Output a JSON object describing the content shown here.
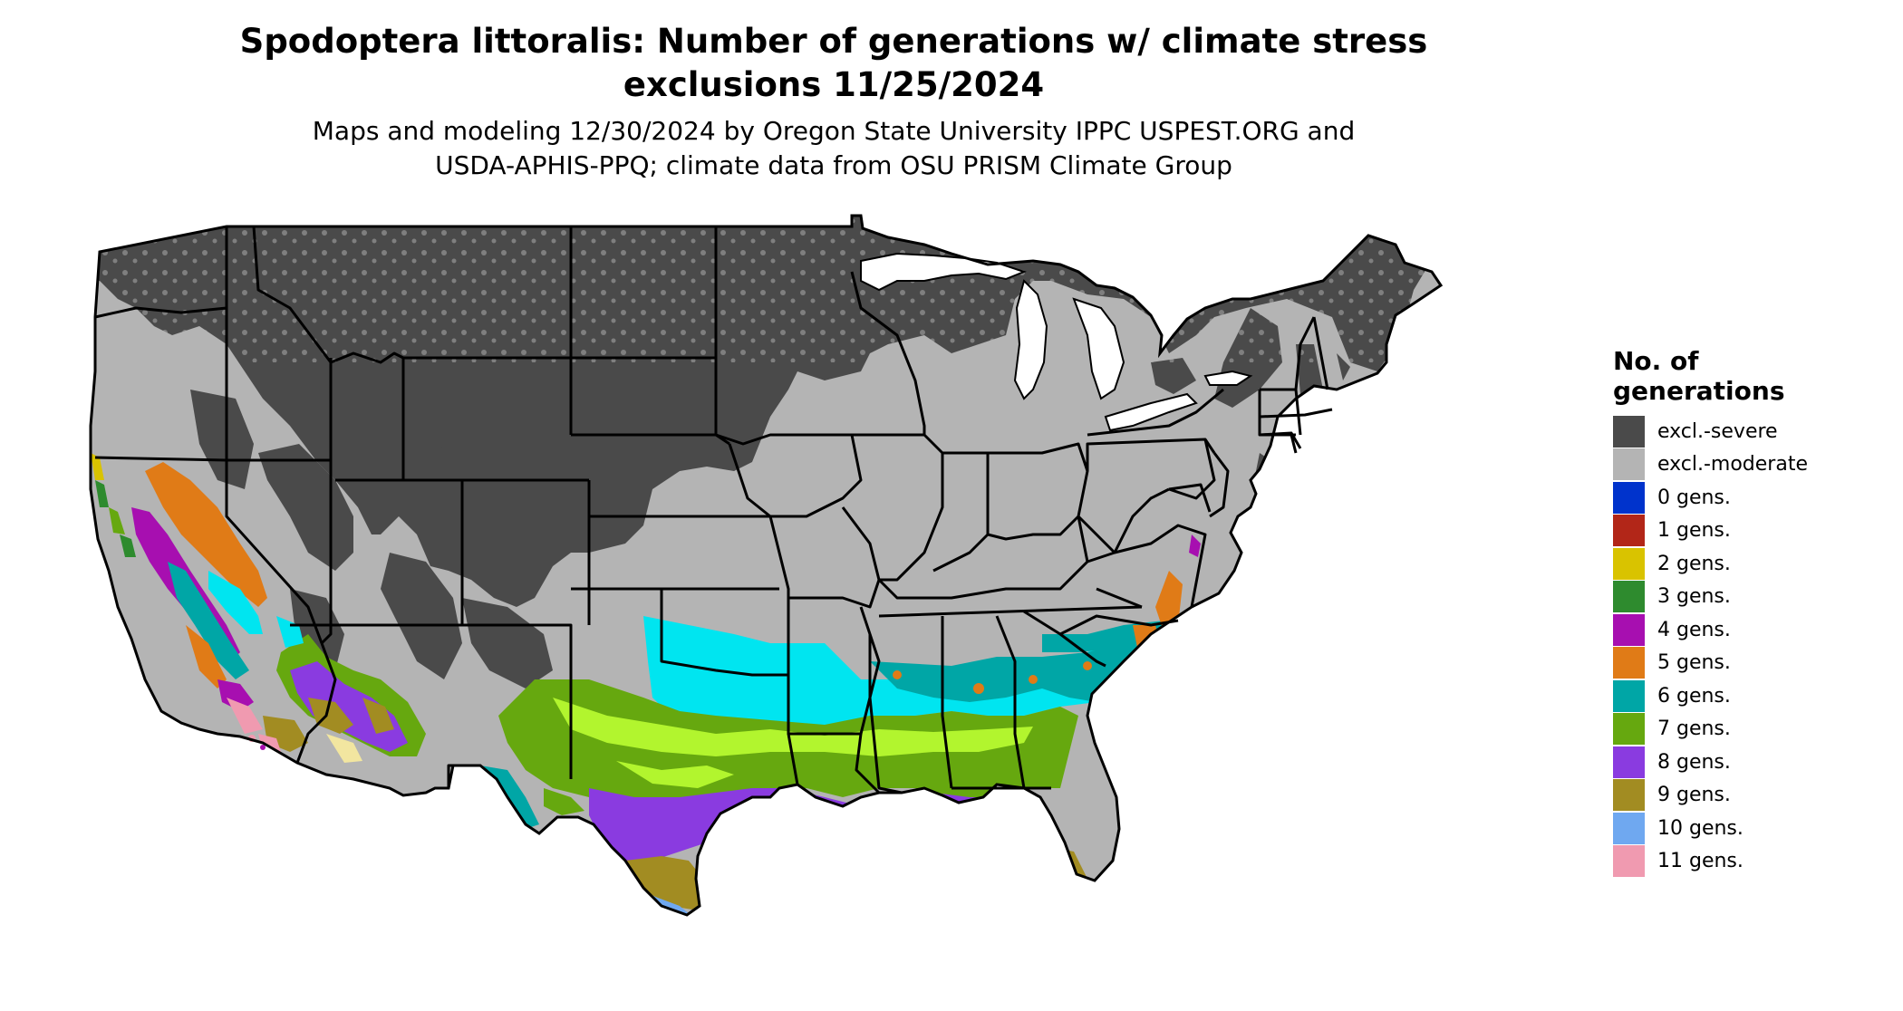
{
  "title": {
    "line1": "Spodoptera littoralis: Number of generations w/ climate stress",
    "line2": "exclusions 11/25/2024"
  },
  "subtitle": {
    "line1": "Maps and modeling 12/30/2024 by Oregon State University IPPC USPEST.ORG and",
    "line2": "USDA-APHIS-PPQ; climate data from OSU PRISM Climate Group"
  },
  "legend": {
    "title_line1": "No. of",
    "title_line2": "generations",
    "items": [
      {
        "label": "excl.-severe",
        "color": "#4a4a4a"
      },
      {
        "label": "excl.-moderate",
        "color": "#b4b4b4"
      },
      {
        "label": "0 gens.",
        "color": "#0033cc"
      },
      {
        "label": "1 gens.",
        "color": "#b22618"
      },
      {
        "label": "2 gens.",
        "color": "#d9c300"
      },
      {
        "label": "3 gens.",
        "color": "#2e8b2e"
      },
      {
        "label": "4 gens.",
        "color": "#a70fb0"
      },
      {
        "label": "5 gens.",
        "color": "#e07b17"
      },
      {
        "label": "6 gens.",
        "color": "#00a6a6"
      },
      {
        "label": "7 gens.",
        "color": "#66a80f"
      },
      {
        "label": "8 gens.",
        "color": "#8a3be0"
      },
      {
        "label": "9 gens.",
        "color": "#a28c22"
      },
      {
        "label": "10 gens.",
        "color": "#6fa8f0"
      },
      {
        "label": "11 gens.",
        "color": "#f09ab0"
      }
    ]
  },
  "map": {
    "region": "Contiguous United States",
    "colors": {
      "boundary": "#000000",
      "lake": "#ffffff",
      "cyan_band": "#00e5f0",
      "lime_band": "#b2f52e",
      "sea": "#ffffff"
    }
  }
}
